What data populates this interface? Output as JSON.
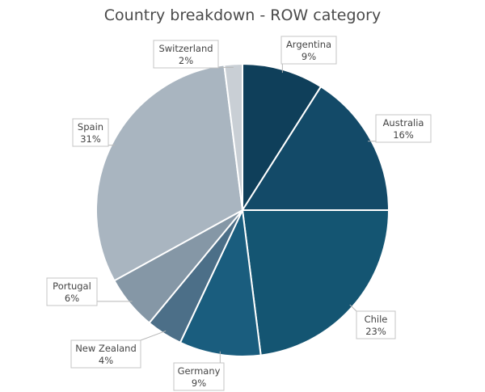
{
  "chart_data": {
    "type": "pie",
    "title": "Country breakdown - ROW category",
    "start_angle_deg": 0,
    "direction": "clockwise",
    "slices": [
      {
        "label": "Argentina",
        "value": 9,
        "display": "9%",
        "color": "#0f3f5a"
      },
      {
        "label": "Australia",
        "value": 16,
        "display": "16%",
        "color": "#134a68"
      },
      {
        "label": "Chile",
        "value": 23,
        "display": "23%",
        "color": "#145572"
      },
      {
        "label": "Germany",
        "value": 9,
        "display": "9%",
        "color": "#1a5d7e"
      },
      {
        "label": "New Zealand",
        "value": 4,
        "display": "4%",
        "color": "#4c6f88"
      },
      {
        "label": "Portugal",
        "value": 6,
        "display": "6%",
        "color": "#8597a6"
      },
      {
        "label": "Spain",
        "value": 31,
        "display": "31%",
        "color": "#a9b5c0"
      },
      {
        "label": "Switzerland",
        "value": 2,
        "display": "2%",
        "color": "#c9cfd5"
      }
    ]
  }
}
